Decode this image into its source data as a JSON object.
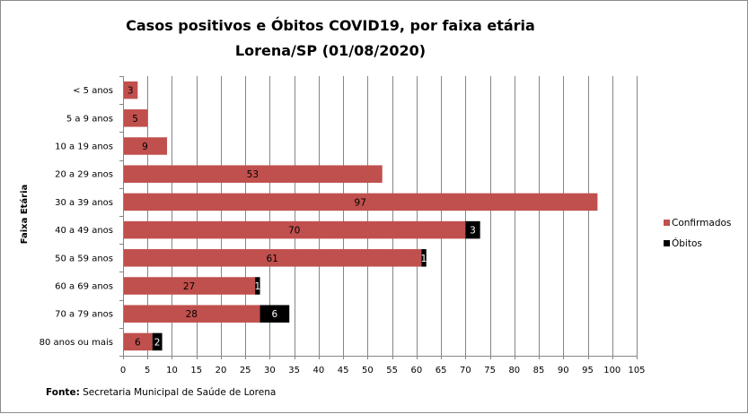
{
  "chart_data": {
    "type": "bar",
    "orientation": "horizontal",
    "stacked": true,
    "title_line1": "Casos positivos  e Óbitos COVID19, por faixa etária",
    "title_line2": "Lorena/SP (01/08/2020)",
    "ylabel": "Faixa Etária",
    "xlabel": "",
    "xlim": [
      0,
      105
    ],
    "xticks": [
      0,
      5,
      10,
      15,
      20,
      25,
      30,
      35,
      40,
      45,
      50,
      55,
      60,
      65,
      70,
      75,
      80,
      85,
      90,
      95,
      100,
      105
    ],
    "grid": true,
    "legend_position": "right",
    "categories": [
      "< 5 anos",
      "5 a 9 anos",
      "10 a 19 anos",
      "20 a 29 anos",
      "30 a 39 anos",
      "40 a 49 anos",
      "50 a 59 anos",
      "60 a 69 anos",
      "70 a 79 anos",
      "80 anos ou mais"
    ],
    "series": [
      {
        "name": "Confirmados",
        "color": "#c0504d",
        "label_color": "#000000",
        "values": [
          3,
          5,
          9,
          53,
          97,
          70,
          61,
          27,
          28,
          6
        ]
      },
      {
        "name": "Óbitos",
        "color": "#000000",
        "label_color": "#ffffff",
        "values": [
          0,
          0,
          0,
          0,
          0,
          3,
          1,
          1,
          6,
          2
        ]
      }
    ]
  },
  "source": {
    "label": "Fonte:",
    "text": " Secretaria Municipal de Saúde de Lorena"
  }
}
